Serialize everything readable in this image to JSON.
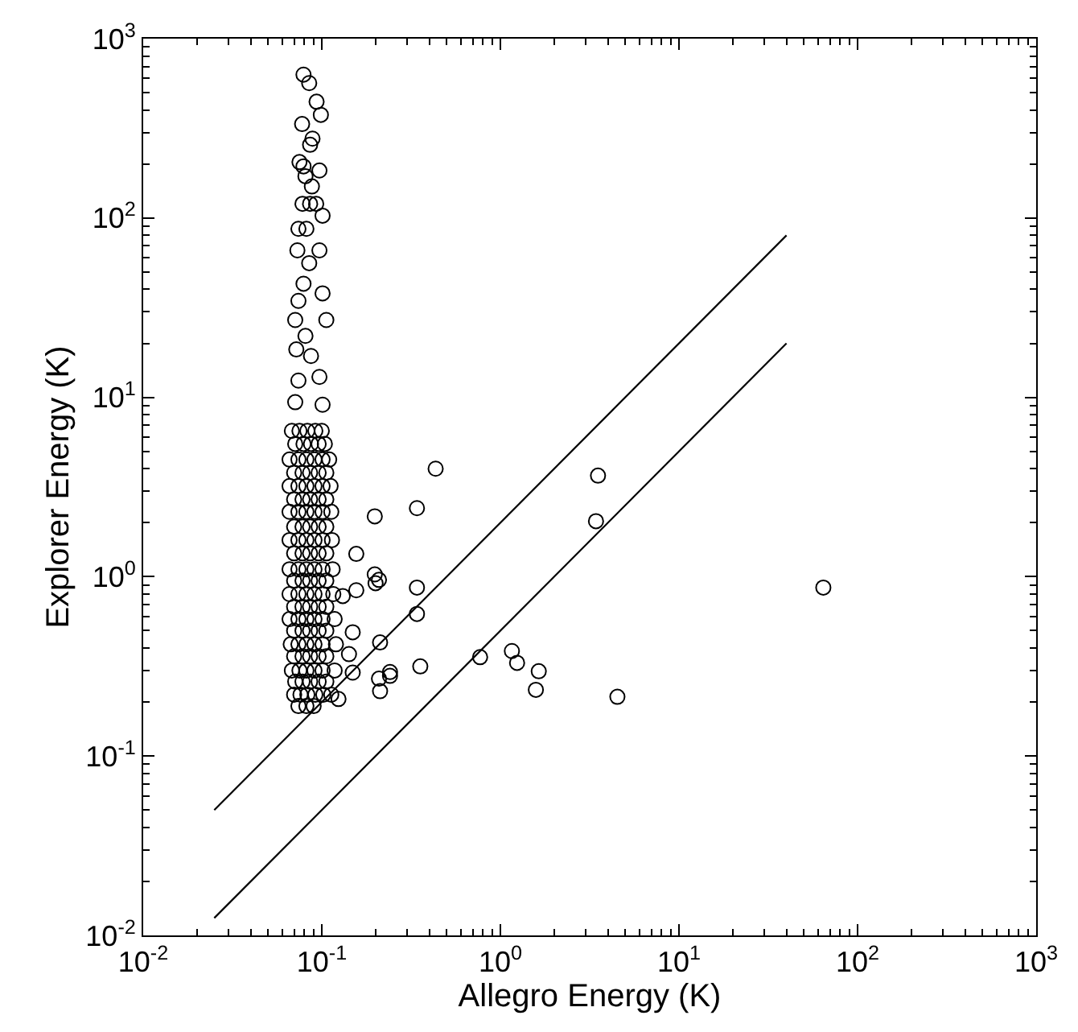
{
  "chart_data": {
    "type": "scatter",
    "xlabel": "Allegro Energy (K)",
    "ylabel": "Explorer Energy (K)",
    "log": "xy",
    "marker": "circle",
    "xlim": [
      0.01,
      1000
    ],
    "ylim": [
      0.01,
      1000
    ],
    "xticks": [
      {
        "value": 0.01,
        "label": "10$^{-2}$"
      },
      {
        "value": 0.1,
        "label": "10$^{-1}$"
      },
      {
        "value": 1,
        "label": "10$^{0}$"
      },
      {
        "value": 10,
        "label": "10$^{1}$"
      },
      {
        "value": 100,
        "label": "10$^{2}$"
      },
      {
        "value": 1000,
        "label": "10$^{3}$"
      }
    ],
    "yticks": [
      {
        "value": 0.01,
        "label": "10$^{-2}$"
      },
      {
        "value": 0.1,
        "label": "10$^{-1}$"
      },
      {
        "value": 1,
        "label": "10$^{0}$"
      },
      {
        "value": 10,
        "label": "10$^{1}$"
      },
      {
        "value": 100,
        "label": "10$^{2}$"
      },
      {
        "value": 1000,
        "label": "10$^{3}$"
      }
    ],
    "series": [
      {
        "color": "#000000",
        "x": [
          0.079,
          0.085,
          0.0935,
          0.0988,
          0.0776,
          0.0887,
          0.086,
          0.075,
          0.079,
          0.097,
          0.081,
          0.088,
          0.078,
          0.086,
          0.093,
          0.101,
          0.074,
          0.082,
          0.097,
          0.073,
          0.085,
          0.079,
          0.101,
          0.074,
          0.106,
          0.071,
          0.081,
          0.072,
          0.087,
          0.097,
          0.074,
          0.071,
          0.101
        ],
        "values": [
          630,
          565,
          445,
          376,
          334,
          277,
          256,
          205,
          194,
          184,
          171,
          150,
          120,
          120,
          120,
          103,
          87,
          87,
          66,
          66,
          56,
          43,
          38,
          34.5,
          27,
          27,
          22,
          18.5,
          17,
          13,
          12.4,
          9.4,
          9.1
        ]
      },
      {
        "color": "#000000",
        "x": [
          0.068,
          0.075,
          0.083,
          0.092,
          0.1,
          0.071,
          0.079,
          0.087,
          0.096,
          0.104,
          0.066,
          0.074,
          0.082,
          0.091,
          0.101,
          0.11,
          0.07,
          0.078,
          0.086,
          0.096,
          0.106,
          0.066,
          0.074,
          0.082,
          0.091,
          0.101,
          0.112,
          0.07,
          0.078,
          0.086,
          0.096,
          0.106,
          0.066,
          0.074,
          0.082,
          0.091,
          0.101,
          0.113,
          0.07,
          0.078,
          0.086,
          0.096,
          0.106,
          0.066,
          0.074,
          0.082,
          0.091,
          0.101,
          0.114,
          0.07,
          0.078,
          0.086,
          0.096,
          0.106,
          0.066,
          0.074,
          0.082,
          0.091,
          0.101,
          0.115,
          0.07,
          0.078,
          0.086,
          0.096,
          0.106,
          0.066,
          0.074,
          0.082,
          0.091,
          0.101,
          0.116,
          0.07,
          0.078,
          0.086,
          0.096,
          0.106,
          0.066,
          0.074,
          0.082,
          0.091,
          0.101,
          0.118,
          0.07,
          0.078,
          0.086,
          0.096,
          0.106,
          0.067,
          0.074,
          0.082,
          0.091,
          0.101,
          0.12,
          0.07,
          0.078,
          0.086,
          0.096,
          0.106,
          0.068,
          0.075,
          0.082,
          0.091,
          0.101,
          0.118,
          0.071,
          0.078,
          0.086,
          0.096,
          0.106,
          0.07,
          0.076,
          0.083,
          0.092,
          0.102,
          0.113,
          0.074,
          0.082,
          0.09
        ],
        "values": [
          6.5,
          6.5,
          6.5,
          6.5,
          6.5,
          5.5,
          5.5,
          5.5,
          5.5,
          5.5,
          4.5,
          4.5,
          4.5,
          4.5,
          4.5,
          4.5,
          3.8,
          3.8,
          3.8,
          3.8,
          3.8,
          3.2,
          3.2,
          3.2,
          3.2,
          3.2,
          3.2,
          2.7,
          2.7,
          2.7,
          2.7,
          2.7,
          2.3,
          2.3,
          2.3,
          2.3,
          2.3,
          2.3,
          1.9,
          1.9,
          1.9,
          1.9,
          1.9,
          1.6,
          1.6,
          1.6,
          1.6,
          1.6,
          1.6,
          1.35,
          1.35,
          1.35,
          1.35,
          1.35,
          1.1,
          1.1,
          1.1,
          1.1,
          1.1,
          1.1,
          0.95,
          0.95,
          0.95,
          0.95,
          0.95,
          0.8,
          0.8,
          0.8,
          0.8,
          0.8,
          0.8,
          0.68,
          0.68,
          0.68,
          0.68,
          0.68,
          0.58,
          0.58,
          0.58,
          0.58,
          0.58,
          0.58,
          0.5,
          0.5,
          0.5,
          0.5,
          0.5,
          0.42,
          0.42,
          0.42,
          0.42,
          0.42,
          0.42,
          0.36,
          0.36,
          0.36,
          0.36,
          0.36,
          0.3,
          0.3,
          0.3,
          0.3,
          0.3,
          0.3,
          0.26,
          0.26,
          0.26,
          0.26,
          0.26,
          0.22,
          0.22,
          0.22,
          0.22,
          0.22,
          0.22,
          0.19,
          0.19,
          0.19
        ]
      },
      {
        "color": "#000000",
        "x": [
          0.434,
          3.52,
          0.341,
          0.198,
          3.43,
          0.156,
          0.198,
          0.209,
          0.2,
          0.156,
          0.341,
          64.3,
          0.131,
          0.341,
          0.149,
          0.212,
          0.142,
          0.77,
          1.16,
          1.24,
          0.356,
          0.241,
          1.64,
          0.149,
          0.209,
          0.241,
          0.212,
          1.58,
          4.52,
          0.124
        ],
        "values": [
          4.0,
          3.66,
          2.41,
          2.17,
          2.04,
          1.34,
          1.03,
          0.96,
          0.92,
          0.84,
          0.87,
          0.87,
          0.78,
          0.62,
          0.49,
          0.43,
          0.37,
          0.356,
          0.385,
          0.331,
          0.316,
          0.294,
          0.297,
          0.292,
          0.27,
          0.28,
          0.23,
          0.234,
          0.214,
          0.208
        ]
      },
      {
        "type": "line",
        "marker": "none",
        "color": "#000000",
        "x": [
          0.025,
          40
        ],
        "values": [
          0.05,
          80
        ]
      },
      {
        "type": "line",
        "marker": "none",
        "color": "#000000",
        "x": [
          0.025,
          40
        ],
        "values": [
          0.0125,
          20
        ]
      }
    ]
  }
}
